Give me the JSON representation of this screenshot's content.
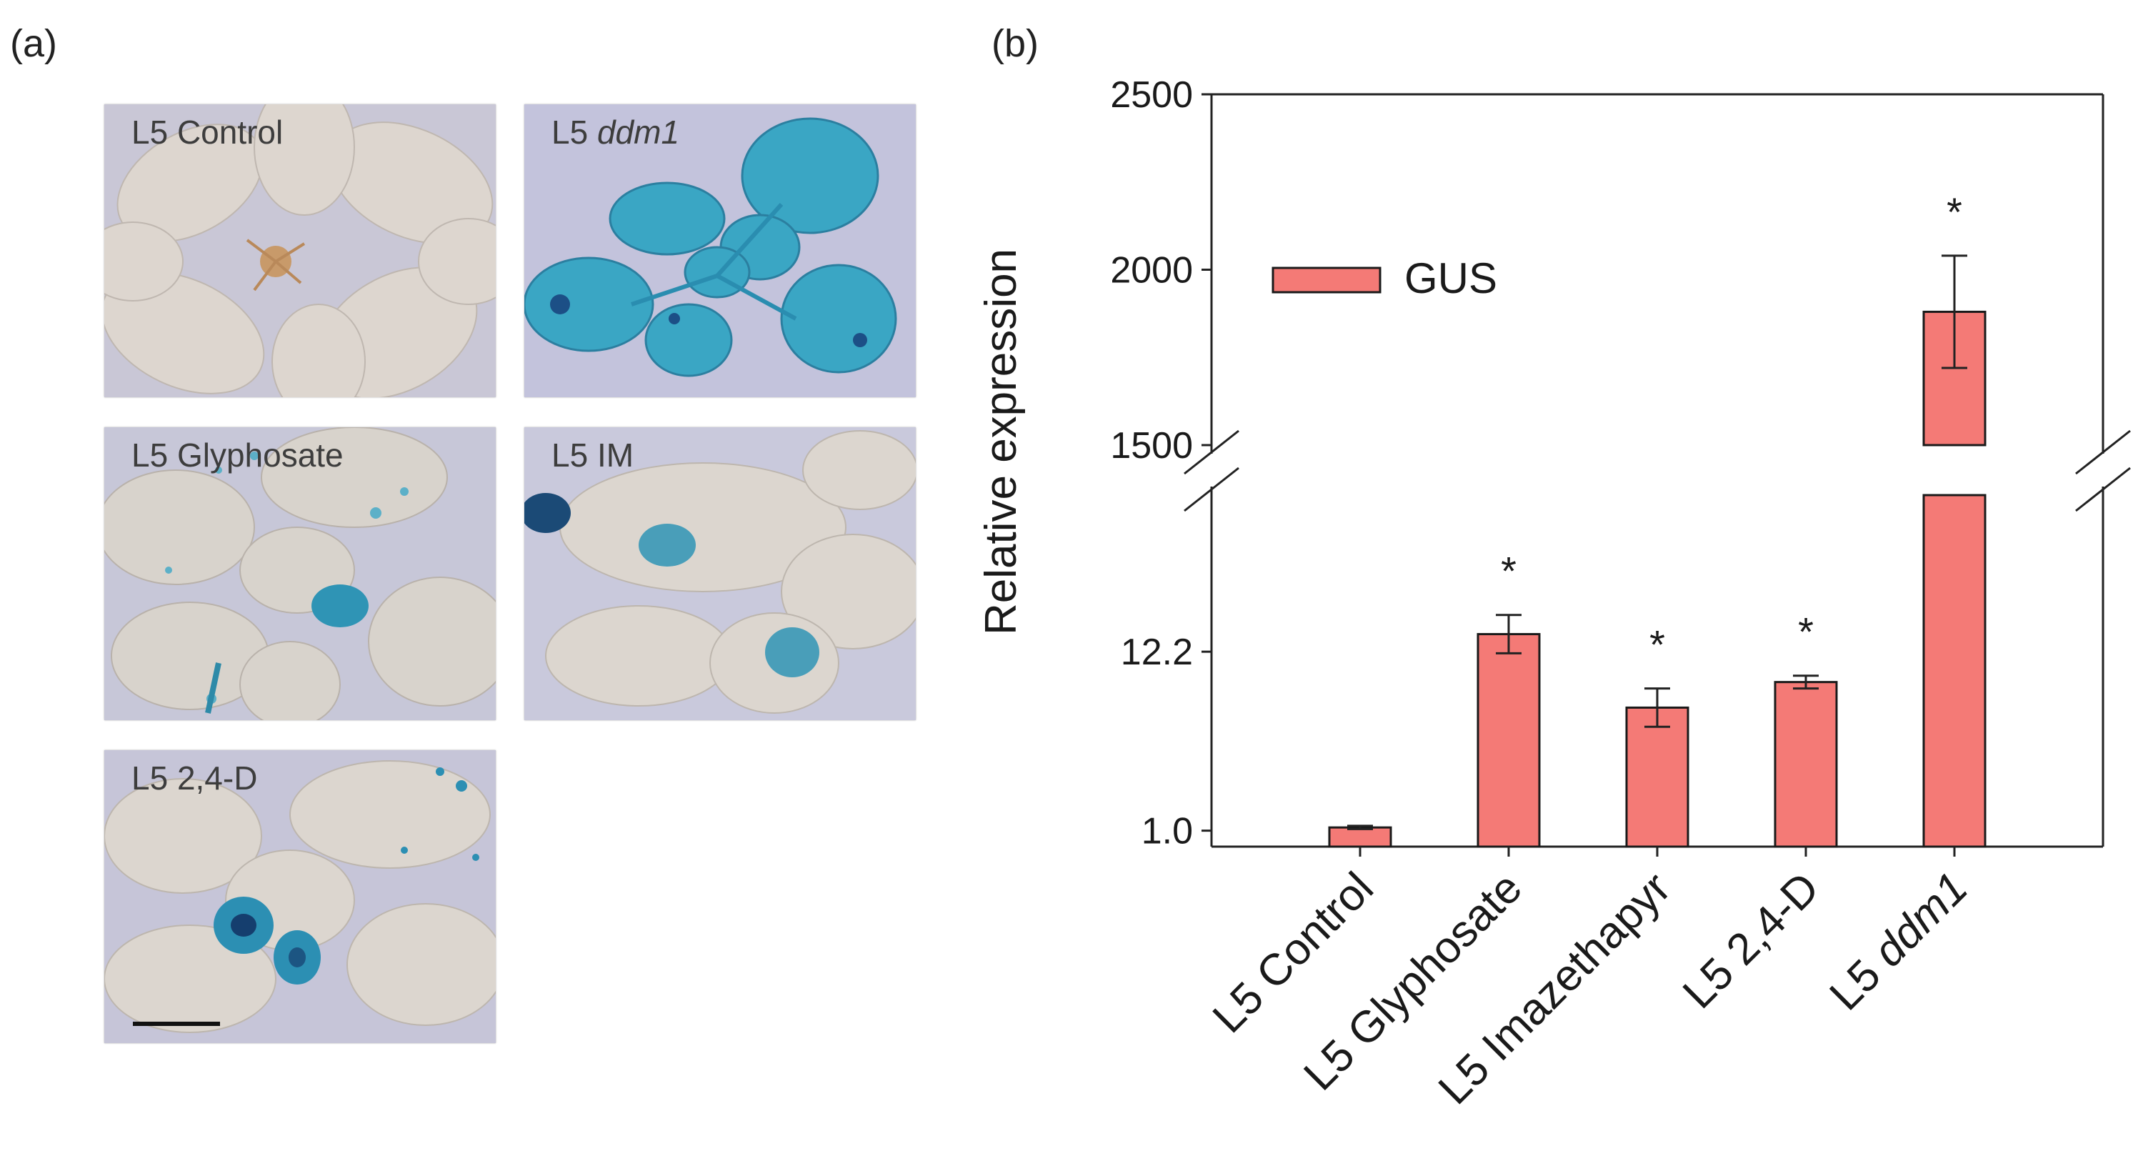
{
  "panel_a": {
    "letter": "(a)",
    "photos": [
      {
        "label": "L5 Control",
        "italic_part": ""
      },
      {
        "label": "L5 ",
        "italic_part": "ddm1"
      },
      {
        "label": "L5 Glyphosate",
        "italic_part": ""
      },
      {
        "label": "L5 IM",
        "italic_part": ""
      },
      {
        "label": "L5 2,4-D",
        "italic_part": ""
      }
    ],
    "colors": {
      "background": "#c9c7d6",
      "leaf": "#dcd6cf",
      "gus_stain": "#2f9bbb",
      "gus_dark": "#174a7a"
    }
  },
  "panel_b": {
    "letter": "(b)"
  },
  "chart_data": {
    "type": "bar",
    "title": "",
    "xlabel": "",
    "ylabel": "Relative expression",
    "categories": [
      {
        "prefix": "L5 ",
        "name": "Control",
        "italic": false
      },
      {
        "prefix": "L5 ",
        "name": "Glyphosate",
        "italic": false
      },
      {
        "prefix": "L5 ",
        "name": "Imazethapyr",
        "italic": false
      },
      {
        "prefix": "L5 ",
        "name": "2,4-D",
        "italic": false
      },
      {
        "prefix": "L5 ",
        "name": "ddm1",
        "italic": true
      }
    ],
    "series": [
      {
        "name": "GUS",
        "values": [
          1.2,
          13.3,
          8.7,
          10.3,
          1880
        ],
        "errors": [
          0.1,
          1.2,
          1.2,
          0.4,
          160
        ],
        "significant": [
          false,
          true,
          true,
          true,
          true
        ],
        "color": "#f47a76",
        "edge_color": "#1a1a1a"
      }
    ],
    "significance_marker": "*",
    "y_axis": {
      "broken": true,
      "lower_segment_ylim": [
        0,
        22
      ],
      "upper_segment_ylim": [
        1500,
        2500
      ],
      "tick_labels": [
        "1.0",
        "12.2",
        "1500",
        "2000",
        "2500"
      ]
    },
    "legend": {
      "position": "upper-left",
      "entries": [
        "GUS"
      ]
    },
    "grid": false
  }
}
